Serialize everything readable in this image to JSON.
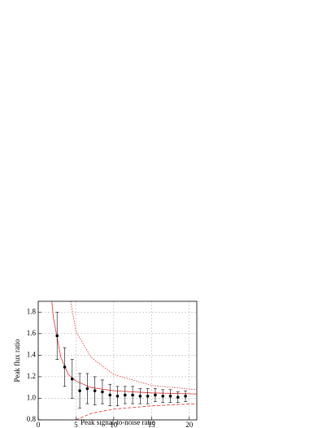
{
  "chart_data": {
    "type": "scatter",
    "x_label": "Peak signal-to-noise ratio",
    "y_label": "Peak flux ratio",
    "xlim": [
      0,
      21
    ],
    "ylim": [
      0.8,
      1.9
    ],
    "xticks": [
      0,
      5,
      10,
      15,
      20
    ],
    "yticks": [
      0.8,
      {
        "value": 1,
        "label": "1.0"
      },
      1.2,
      1.4,
      1.6,
      1.8
    ],
    "grid": true,
    "points": {
      "color": "#000000",
      "x": [
        2.5,
        3.5,
        4.5,
        5.5,
        6.5,
        7.5,
        8.5,
        9.5,
        10.5,
        11.5,
        12.5,
        13.5,
        14.5,
        15.5,
        16.5,
        17.5,
        18.5,
        19.5
      ],
      "values": [
        1.58,
        1.29,
        1.18,
        1.07,
        1.09,
        1.07,
        1.06,
        1.03,
        1.02,
        1.03,
        1.03,
        1.02,
        1.02,
        1.03,
        1.02,
        1.02,
        1.01,
        1.02
      ],
      "errors": [
        0.22,
        0.18,
        0.18,
        0.16,
        0.14,
        0.13,
        0.11,
        0.1,
        0.09,
        0.08,
        0.08,
        0.07,
        0.07,
        0.06,
        0.06,
        0.06,
        0.05,
        0.05
      ]
    },
    "curves": [
      {
        "color": "#e03030",
        "style": "solid",
        "x": [
          1.8,
          2,
          3,
          4,
          5,
          7,
          10,
          15,
          21
        ],
        "values": [
          1.9,
          1.75,
          1.38,
          1.22,
          1.16,
          1.1,
          1.07,
          1.05,
          1.04
        ]
      },
      {
        "color": "#e03030",
        "style": "dotted",
        "x": [
          4.3,
          5,
          7,
          10,
          15,
          21
        ],
        "values": [
          1.9,
          1.62,
          1.38,
          1.22,
          1.12,
          1.08
        ]
      },
      {
        "color": "#e03030",
        "style": "dashed",
        "x": [
          5,
          7,
          10,
          15,
          21
        ],
        "values": [
          0.8,
          0.86,
          0.9,
          0.93,
          0.95
        ]
      }
    ]
  }
}
